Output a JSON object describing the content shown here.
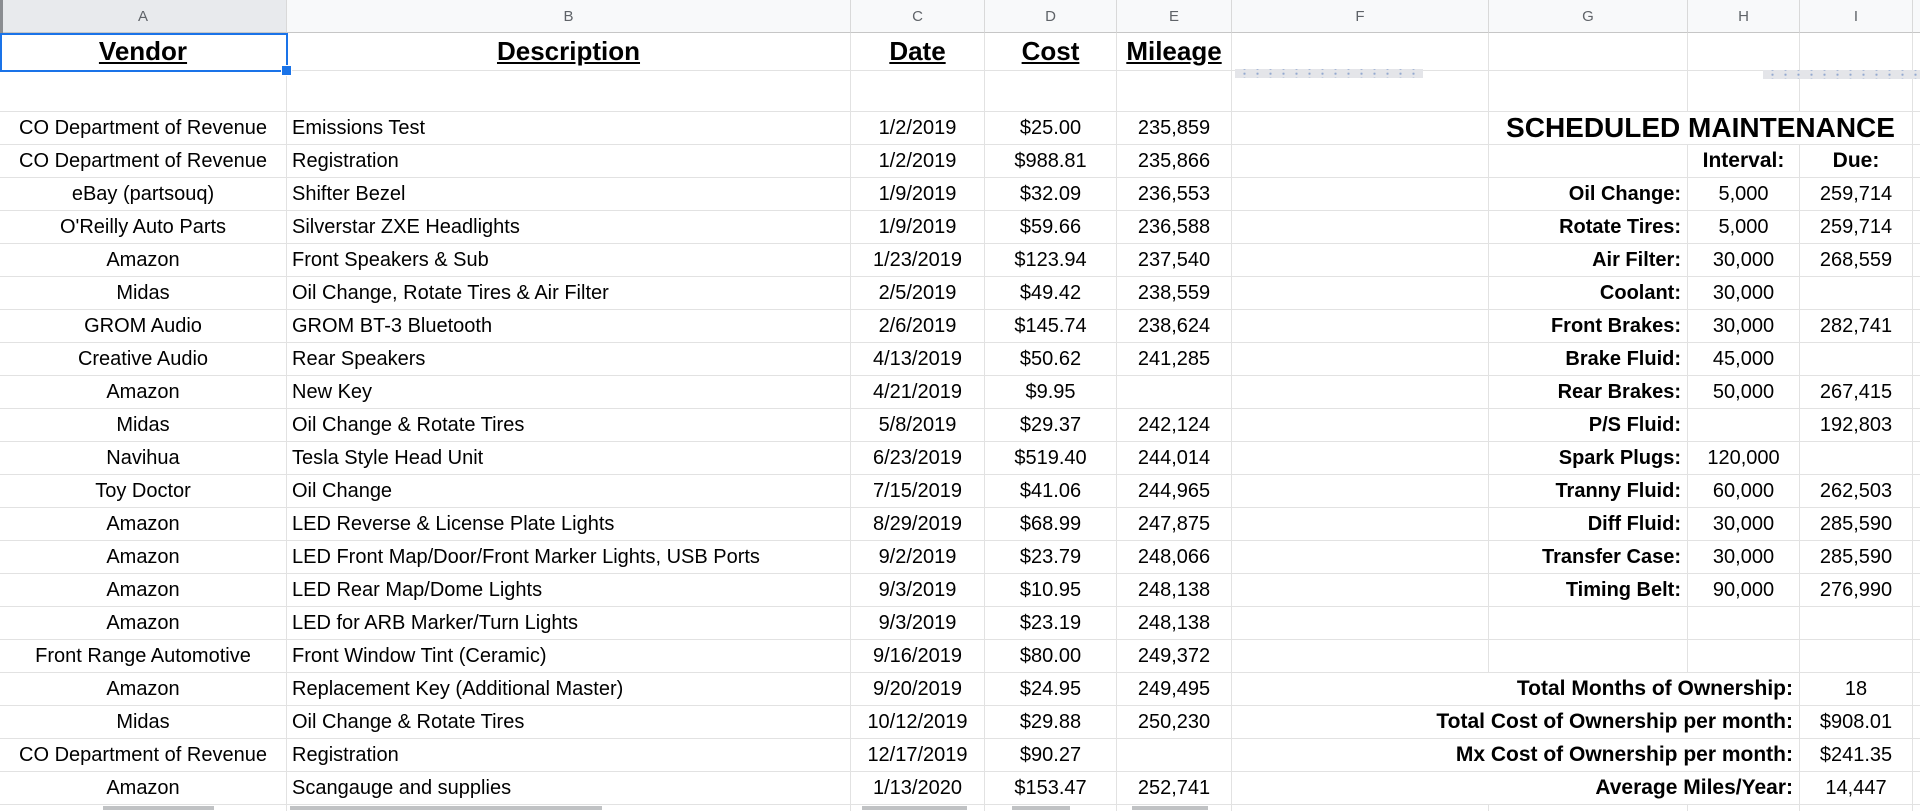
{
  "sheet": {
    "column_letters": [
      "A",
      "B",
      "C",
      "D",
      "E",
      "F",
      "G",
      "H",
      "I"
    ],
    "selection": {
      "column": "A",
      "selected_cell_text": "Vendor",
      "accent_color": "#1a73e8"
    },
    "grid_color": "#e2e2e2",
    "table_headers": {
      "vendor": "Vendor",
      "description": "Description",
      "date": "Date",
      "cost": "Cost",
      "mileage": "Mileage"
    },
    "maintenance_panel_title": "SCHEDULED MAINTENANCE",
    "maintenance_interval_header": "Interval:",
    "maintenance_due_header": "Due:",
    "rows": [
      {
        "vendor": "CO Department of Revenue",
        "description": "Emissions Test",
        "date": "1/2/2019",
        "cost": "$25.00",
        "mileage": "235,859",
        "right": {
          "type": "title",
          "title": "SCHEDULED MAINTENANCE"
        }
      },
      {
        "vendor": "CO Department of Revenue",
        "description": "Registration",
        "date": "1/2/2019",
        "cost": "$988.81",
        "mileage": "235,866",
        "right": {
          "type": "header",
          "interval": "Interval:",
          "due": "Due:"
        }
      },
      {
        "vendor": "eBay (partsouq)",
        "description": "Shifter Bezel",
        "date": "1/9/2019",
        "cost": "$32.09",
        "mileage": "236,553",
        "right": {
          "type": "item",
          "label": "Oil Change:",
          "interval": "5,000",
          "due": "259,714"
        }
      },
      {
        "vendor": "O'Reilly Auto Parts",
        "description": "Silverstar ZXE Headlights",
        "date": "1/9/2019",
        "cost": "$59.66",
        "mileage": "236,588",
        "right": {
          "type": "item",
          "label": "Rotate Tires:",
          "interval": "5,000",
          "due": "259,714"
        }
      },
      {
        "vendor": "Amazon",
        "description": "Front Speakers & Sub",
        "date": "1/23/2019",
        "cost": "$123.94",
        "mileage": "237,540",
        "right": {
          "type": "item",
          "label": "Air Filter:",
          "interval": "30,000",
          "due": "268,559"
        }
      },
      {
        "vendor": "Midas",
        "description": "Oil Change, Rotate Tires & Air Filter",
        "date": "2/5/2019",
        "cost": "$49.42",
        "mileage": "238,559",
        "right": {
          "type": "item",
          "label": "Coolant:",
          "interval": "30,000",
          "due": ""
        }
      },
      {
        "vendor": "GROM Audio",
        "description": "GROM BT-3 Bluetooth",
        "date": "2/6/2019",
        "cost": "$145.74",
        "mileage": "238,624",
        "right": {
          "type": "item",
          "label": "Front Brakes:",
          "interval": "30,000",
          "due": "282,741"
        }
      },
      {
        "vendor": "Creative Audio",
        "description": "Rear Speakers",
        "date": "4/13/2019",
        "cost": "$50.62",
        "mileage": "241,285",
        "right": {
          "type": "item",
          "label": "Brake Fluid:",
          "interval": "45,000",
          "due": ""
        }
      },
      {
        "vendor": "Amazon",
        "description": "New Key",
        "date": "4/21/2019",
        "cost": "$9.95",
        "mileage": "",
        "right": {
          "type": "item",
          "label": "Rear Brakes:",
          "interval": "50,000",
          "due": "267,415"
        }
      },
      {
        "vendor": "Midas",
        "description": "Oil Change & Rotate Tires",
        "date": "5/8/2019",
        "cost": "$29.37",
        "mileage": "242,124",
        "right": {
          "type": "item",
          "label": "P/S Fluid:",
          "interval": "",
          "due": "192,803"
        }
      },
      {
        "vendor": "Navihua",
        "description": "Tesla Style Head Unit",
        "date": "6/23/2019",
        "cost": "$519.40",
        "mileage": "244,014",
        "right": {
          "type": "item",
          "label": "Spark Plugs:",
          "interval": "120,000",
          "due": ""
        }
      },
      {
        "vendor": "Toy Doctor",
        "description": "Oil Change",
        "date": "7/15/2019",
        "cost": "$41.06",
        "mileage": "244,965",
        "right": {
          "type": "item",
          "label": "Tranny Fluid:",
          "interval": "60,000",
          "due": "262,503"
        }
      },
      {
        "vendor": "Amazon",
        "description": "LED Reverse & License Plate Lights",
        "date": "8/29/2019",
        "cost": "$68.99",
        "mileage": "247,875",
        "right": {
          "type": "item",
          "label": "Diff Fluid:",
          "interval": "30,000",
          "due": "285,590"
        }
      },
      {
        "vendor": "Amazon",
        "description": "LED Front Map/Door/Front Marker Lights, USB Ports",
        "date": "9/2/2019",
        "cost": "$23.79",
        "mileage": "248,066",
        "right": {
          "type": "item",
          "label": "Transfer Case:",
          "interval": "30,000",
          "due": "285,590"
        }
      },
      {
        "vendor": "Amazon",
        "description": "LED Rear Map/Dome Lights",
        "date": "9/3/2019",
        "cost": "$10.95",
        "mileage": "248,138",
        "right": {
          "type": "item",
          "label": "Timing Belt:",
          "interval": "90,000",
          "due": "276,990"
        }
      },
      {
        "vendor": "Amazon",
        "description": "LED for ARB Marker/Turn Lights",
        "date": "9/3/2019",
        "cost": "$23.19",
        "mileage": "248,138",
        "right": {
          "type": "blank"
        }
      },
      {
        "vendor": "Front Range Automotive",
        "description": "Front Window Tint (Ceramic)",
        "date": "9/16/2019",
        "cost": "$80.00",
        "mileage": "249,372",
        "right": {
          "type": "blank"
        }
      },
      {
        "vendor": "Amazon",
        "description": "Replacement Key (Additional Master)",
        "date": "9/20/2019",
        "cost": "$24.95",
        "mileage": "249,495",
        "right": {
          "type": "summary",
          "label": "Total Months of Ownership:",
          "value": "18"
        }
      },
      {
        "vendor": "Midas",
        "description": "Oil Change & Rotate Tires",
        "date": "10/12/2019",
        "cost": "$29.88",
        "mileage": "250,230",
        "right": {
          "type": "summary",
          "label": "Total Cost of Ownership per month:",
          "value": "$908.01"
        }
      },
      {
        "vendor": "CO Department of Revenue",
        "description": "Registration",
        "date": "12/17/2019",
        "cost": "$90.27",
        "mileage": "",
        "right": {
          "type": "summary",
          "label": "Mx Cost of Ownership per month:",
          "value": "$241.35"
        }
      },
      {
        "vendor": "Amazon",
        "description": "Scangauge and supplies",
        "date": "1/13/2020",
        "cost": "$153.47",
        "mileage": "252,741",
        "right": {
          "type": "summary",
          "label": "Average Miles/Year:",
          "value": "14,447"
        }
      }
    ]
  }
}
